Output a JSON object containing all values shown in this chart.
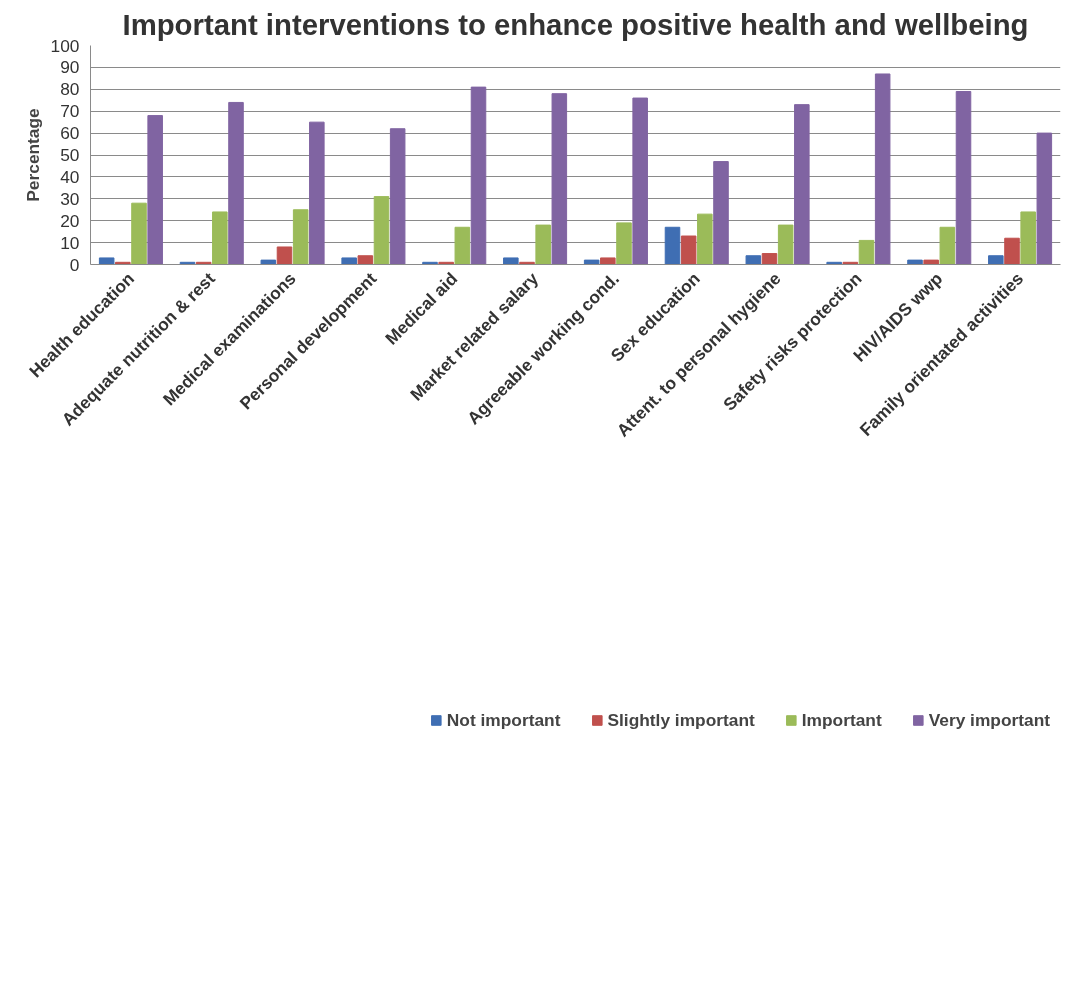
{
  "chart_data": {
    "type": "bar",
    "title": "Important interventions to enhance positive health and wellbeing",
    "ylabel": "Percentage",
    "categories": [
      "Health education",
      "Adequate nutrition & rest",
      "Medical examinations",
      "Personal development",
      "Medical aid",
      "Market related salary",
      "Agreeable working cond.",
      "Sex education",
      "Attent. to personal hygiene",
      "Safety risks protection",
      "HIV/AIDS wwp",
      "Family orientated activities"
    ],
    "series": [
      {
        "name": "Not important",
        "color": "#3f6eb3",
        "values": [
          3,
          1,
          2,
          3,
          1,
          3,
          2,
          17,
          4,
          1,
          2,
          4
        ]
      },
      {
        "name": "Slightly important",
        "color": "#c0504d",
        "values": [
          1,
          1,
          8,
          4,
          1,
          1,
          3,
          13,
          5,
          1,
          2,
          12
        ]
      },
      {
        "name": "Important",
        "color": "#9bbb59",
        "values": [
          28,
          24,
          25,
          31,
          17,
          18,
          19,
          23,
          18,
          11,
          17,
          24
        ]
      },
      {
        "name": "Very important",
        "color": "#8064a2",
        "values": [
          68,
          74,
          65,
          62,
          81,
          78,
          76,
          47,
          73,
          87,
          79,
          60
        ]
      }
    ],
    "ylim": [
      0,
      100
    ],
    "yticks": [
      0,
      10,
      20,
      30,
      40,
      50,
      60,
      70,
      80,
      90,
      100
    ],
    "grid": "y",
    "legend": "bottom"
  }
}
